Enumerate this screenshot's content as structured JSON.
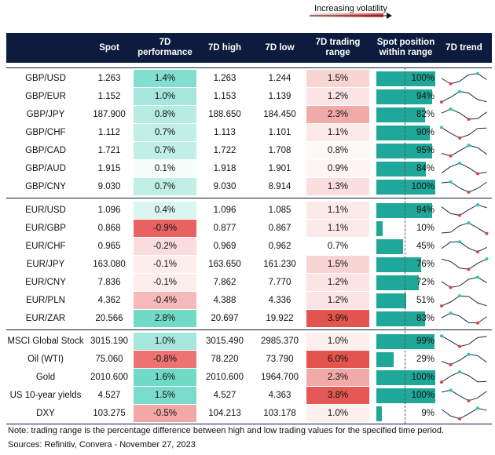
{
  "header": {
    "volatility_label": "Increasing volatility"
  },
  "table": {
    "columns": [
      "Spot",
      "7D performance",
      "7D high",
      "7D low",
      "7D trading range",
      "Spot position within range",
      "7D trend"
    ],
    "groups": [
      {
        "rows": [
          [
            "GBP/USD",
            "1.263",
            "1.4%",
            "1.263",
            "1.244",
            "1.5%",
            "100%"
          ],
          [
            "GBP/EUR",
            "1.152",
            "1.0%",
            "1.153",
            "1.139",
            "1.2%",
            "94%"
          ],
          [
            "GBP/JPY",
            "187.900",
            "0.8%",
            "188.650",
            "184.450",
            "2.3%",
            "82%"
          ],
          [
            "GBP/CHF",
            "1.112",
            "0.7%",
            "1.113",
            "1.101",
            "1.1%",
            "90%"
          ],
          [
            "GBP/CAD",
            "1.721",
            "0.7%",
            "1.722",
            "1.708",
            "0.8%",
            "95%"
          ],
          [
            "GBP/AUD",
            "1.915",
            "0.1%",
            "1.918",
            "1.901",
            "0.9%",
            "84%"
          ],
          [
            "GBP/CNY",
            "9.030",
            "0.7%",
            "9.030",
            "8.914",
            "1.3%",
            "100%"
          ]
        ]
      },
      {
        "rows": [
          [
            "EUR/USD",
            "1.096",
            "0.4%",
            "1.096",
            "1.085",
            "1.1%",
            "94%"
          ],
          [
            "EUR/GBP",
            "0.868",
            "-0.9%",
            "0.877",
            "0.867",
            "1.1%",
            "10%"
          ],
          [
            "EUR/CHF",
            "0.965",
            "-0.2%",
            "0.969",
            "0.962",
            "0.7%",
            "45%"
          ],
          [
            "EUR/JPY",
            "163.080",
            "-0.1%",
            "163.650",
            "161.230",
            "1.5%",
            "76%"
          ],
          [
            "EUR/CNY",
            "7.836",
            "-0.1%",
            "7.862",
            "7.770",
            "1.2%",
            "72%"
          ],
          [
            "EUR/PLN",
            "4.362",
            "-0.4%",
            "4.388",
            "4.336",
            "1.2%",
            "51%"
          ],
          [
            "EUR/ZAR",
            "20.566",
            "2.8%",
            "20.697",
            "19.922",
            "3.9%",
            "83%"
          ]
        ]
      },
      {
        "rows": [
          [
            "MSCI Global Stock",
            "3015.190",
            "1.0%",
            "3015.490",
            "2985.370",
            "1.0%",
            "99%"
          ],
          [
            "Oil (WTI)",
            "75.060",
            "-0.8%",
            "78.220",
            "73.790",
            "6.0%",
            "29%"
          ],
          [
            "Gold",
            "2010.600",
            "1.6%",
            "2010.600",
            "1964.700",
            "2.3%",
            "100%"
          ],
          [
            "US 10-year yields",
            "4.527",
            "1.5%",
            "4.527",
            "4.363",
            "3.8%",
            "100%"
          ],
          [
            "DXY",
            "103.275",
            "-0.5%",
            "104.213",
            "103.178",
            "1.0%",
            "9%"
          ]
        ]
      }
    ]
  },
  "footer": {
    "note": "Note: trading range is the percentage difference between high and low trading values for the specified time period.",
    "sources": "Sources: Refinitiv, Convera - November 27, 2023"
  }
}
